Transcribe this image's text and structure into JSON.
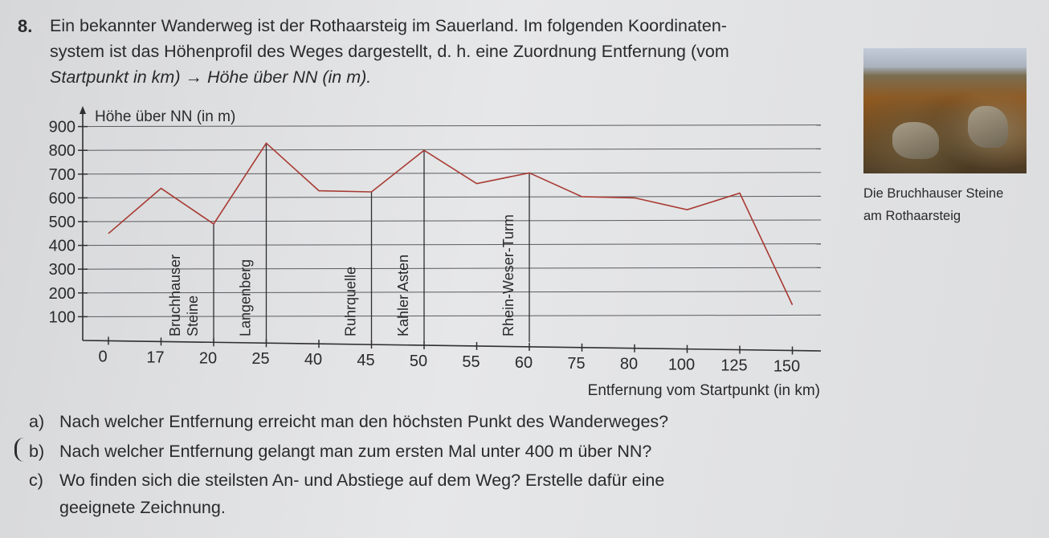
{
  "task": {
    "number": "8.",
    "intro_line1": "Ein bekannter Wanderweg ist der Rothaarsteig im Sauerland. Im folgenden Koordinaten-",
    "intro_line2": "system ist das Höhenprofil des Weges dargestellt, d. h. eine Zuordnung Entfernung (vom",
    "intro_line3": "Startpunkt in km) → Höhe über NN (in m)."
  },
  "photo": {
    "caption_line1": "Die Bruchhauser Steine",
    "caption_line2": "am Rothaarsteig"
  },
  "questions": [
    {
      "label": "a)",
      "text": "Nach welcher Entfernung erreicht man den höchsten Punkt des Wanderweges?"
    },
    {
      "label": "b)",
      "text": "Nach welcher Entfernung gelangt man zum ersten Mal unter 400 m über NN?"
    },
    {
      "label": "c)",
      "text": "Wo finden sich die steilsten An- und Abstiege auf dem Weg? Erstelle dafür eine",
      "text_line2": "geeignete Zeichnung."
    }
  ],
  "chart_data": {
    "type": "line",
    "ylabel": "Höhe über NN (in m)",
    "xlabel": "Entfernung vom Startpunkt (in km)",
    "ylim": [
      0,
      900
    ],
    "y_ticks": [
      100,
      200,
      300,
      400,
      500,
      600,
      700,
      800,
      900
    ],
    "x_ticks": [
      "0",
      "17",
      "20",
      "25",
      "40",
      "45",
      "50",
      "55",
      "60",
      "75",
      "80",
      "100",
      "125",
      "150"
    ],
    "grid": "horizontal",
    "line_color": "#a83a33",
    "series": [
      {
        "points": [
          {
            "x": "0",
            "y": 450
          },
          {
            "x": "17",
            "y": 640
          },
          {
            "x": "20",
            "y": 490
          },
          {
            "x": "25",
            "y": 830
          },
          {
            "x": "40",
            "y": 630
          },
          {
            "x": "45",
            "y": 625
          },
          {
            "x": "50",
            "y": 800
          },
          {
            "x": "55",
            "y": 660
          },
          {
            "x": "60",
            "y": 705
          },
          {
            "x": "75",
            "y": 605
          },
          {
            "x": "80",
            "y": 600
          },
          {
            "x": "100",
            "y": 550
          },
          {
            "x": "125",
            "y": 620
          },
          {
            "x": "150",
            "y": 150
          }
        ]
      }
    ],
    "annotations": [
      {
        "x": "20",
        "y": 490,
        "lines": [
          "Bruchhauser",
          "Steine"
        ]
      },
      {
        "x": "25",
        "y": 830,
        "lines": [
          "Langenberg"
        ]
      },
      {
        "x": "45",
        "y": 625,
        "lines": [
          "Ruhrquelle"
        ]
      },
      {
        "x": "50",
        "y": 800,
        "lines": [
          "Kahler Asten"
        ]
      },
      {
        "x": "60",
        "y": 705,
        "lines": [
          "Rhein-Weser-Turm"
        ]
      }
    ]
  }
}
